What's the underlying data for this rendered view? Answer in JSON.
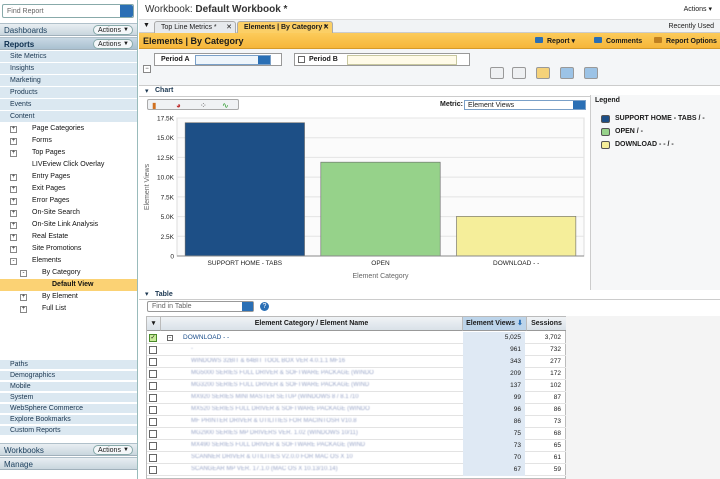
{
  "left": {
    "find_placeholder": "Find Report",
    "dashboards": "Dashboards",
    "actions": "Actions",
    "reports": "Reports",
    "categories": [
      "Site Metrics",
      "Insights",
      "Marketing",
      "Products",
      "Events",
      "Content"
    ],
    "tree": [
      {
        "label": "Page Categories",
        "level": 1,
        "box": "+"
      },
      {
        "label": "Forms",
        "level": 1,
        "box": "+"
      },
      {
        "label": "Top Pages",
        "level": 1,
        "box": "+"
      },
      {
        "label": "LIVEview Click Overlay",
        "level": 1,
        "box": ""
      },
      {
        "label": "Entry Pages",
        "level": 1,
        "box": "+"
      },
      {
        "label": "Exit Pages",
        "level": 1,
        "box": "+"
      },
      {
        "label": "Error Pages",
        "level": 1,
        "box": "+"
      },
      {
        "label": "On-Site Search",
        "level": 1,
        "box": "+"
      },
      {
        "label": "On-Site Link Analysis",
        "level": 1,
        "box": "+"
      },
      {
        "label": "Real Estate",
        "level": 1,
        "box": "+"
      },
      {
        "label": "Site Promotions",
        "level": 1,
        "box": "+"
      },
      {
        "label": "Elements",
        "level": 1,
        "box": "-"
      },
      {
        "label": "By Category",
        "level": 2,
        "box": "-"
      },
      {
        "label": "Default View",
        "level": 3,
        "box": "",
        "selected": true
      },
      {
        "label": "By Element",
        "level": 2,
        "box": "+"
      },
      {
        "label": "Full List",
        "level": 2,
        "box": "+"
      }
    ],
    "bottom_cats": [
      "Paths",
      "Demographics",
      "Mobile",
      "System",
      "WebSphere Commerce",
      "Explore Bookmarks",
      "Custom Reports"
    ],
    "workbooks": "Workbooks",
    "manage": "Manage"
  },
  "top": {
    "label": "Workbook: ",
    "name": "Default Workbook *",
    "actions": "Actions"
  },
  "tabs": [
    {
      "label": "Top Line Metrics *"
    },
    {
      "label": "Elements | By Category *"
    }
  ],
  "recently_used": "Recently Used",
  "header": {
    "title": "Elements | By Category",
    "report": "Report",
    "comments": "Comments",
    "options": "Report Options"
  },
  "periods": {
    "a_label": "Period A",
    "b_label": "Period B"
  },
  "chart_section": "Chart",
  "metric_label": "Metric:",
  "metric_value": "Element Views",
  "legend_title": "Legend",
  "chart_data": {
    "type": "bar",
    "categories": [
      "SUPPORT HOME - TABS",
      "OPEN",
      "DOWNLOAD - -"
    ],
    "values": [
      16900,
      11900,
      5025
    ],
    "colors": [
      "#1d4f86",
      "#96d28a",
      "#f5ee9a"
    ],
    "xlabel": "Element Category",
    "ylabel": "Element Views",
    "ylim": [
      0,
      17500
    ],
    "yticks": [
      "0",
      "2.5K",
      "5.0K",
      "7.5K",
      "10.0K",
      "12.5K",
      "15.0K",
      "17.5K"
    ],
    "legend": [
      "SUPPORT HOME - TABS / -",
      "OPEN / -",
      "DOWNLOAD - - / -"
    ]
  },
  "table_section": "Table",
  "table_find": "Find in Table",
  "table": {
    "headers": [
      "Element Category / Element Name",
      "Element Views",
      "Sessions"
    ],
    "rows": [
      {
        "name": "DOWNLOAD - -",
        "ev": "5,025",
        "ss": "3,702",
        "top": true
      },
      {
        "name": "-",
        "ev": "961",
        "ss": "732"
      },
      {
        "name": "WINDOWS 32BIT & 64BIT TOOL BOX VER 4.0.1.1 MF16",
        "ev": "343",
        "ss": "277"
      },
      {
        "name": "MG5000 SERIES FULL DRIVER & SOFTWARE PACKAGE (WINDO",
        "ev": "209",
        "ss": "172"
      },
      {
        "name": "MG3200 SERIES FULL DRIVER & SOFTWARE PACKAGE (WIND",
        "ev": "137",
        "ss": "102"
      },
      {
        "name": "MX920 SERIES MINI MASTER SETUP (WINDOWS 8 / 8.1 /10",
        "ev": "99",
        "ss": "87"
      },
      {
        "name": "MX520 SERIES FULL DRIVER & SOFTWARE PACKAGE (WINDO",
        "ev": "96",
        "ss": "86"
      },
      {
        "name": "MF PRINTER DRIVER & UTILITIES FOR MACINTOSH V10.8",
        "ev": "86",
        "ss": "73"
      },
      {
        "name": "MG2900 SERIES MP DRIVERS VER. 1.02 (WINDOWS 10/11)",
        "ev": "75",
        "ss": "68"
      },
      {
        "name": "MX490 SERIES FULL DRIVER & SOFTWARE PACKAGE (WIND",
        "ev": "73",
        "ss": "65"
      },
      {
        "name": "SCANNER DRIVER & UTILITIES V2.0.0 FOR MAC OS X 10",
        "ev": "70",
        "ss": "61"
      },
      {
        "name": "SCANGEAR MP VER. 17.1.0 (MAC OS X 10.13/10.14)",
        "ev": "67",
        "ss": "59"
      }
    ]
  }
}
